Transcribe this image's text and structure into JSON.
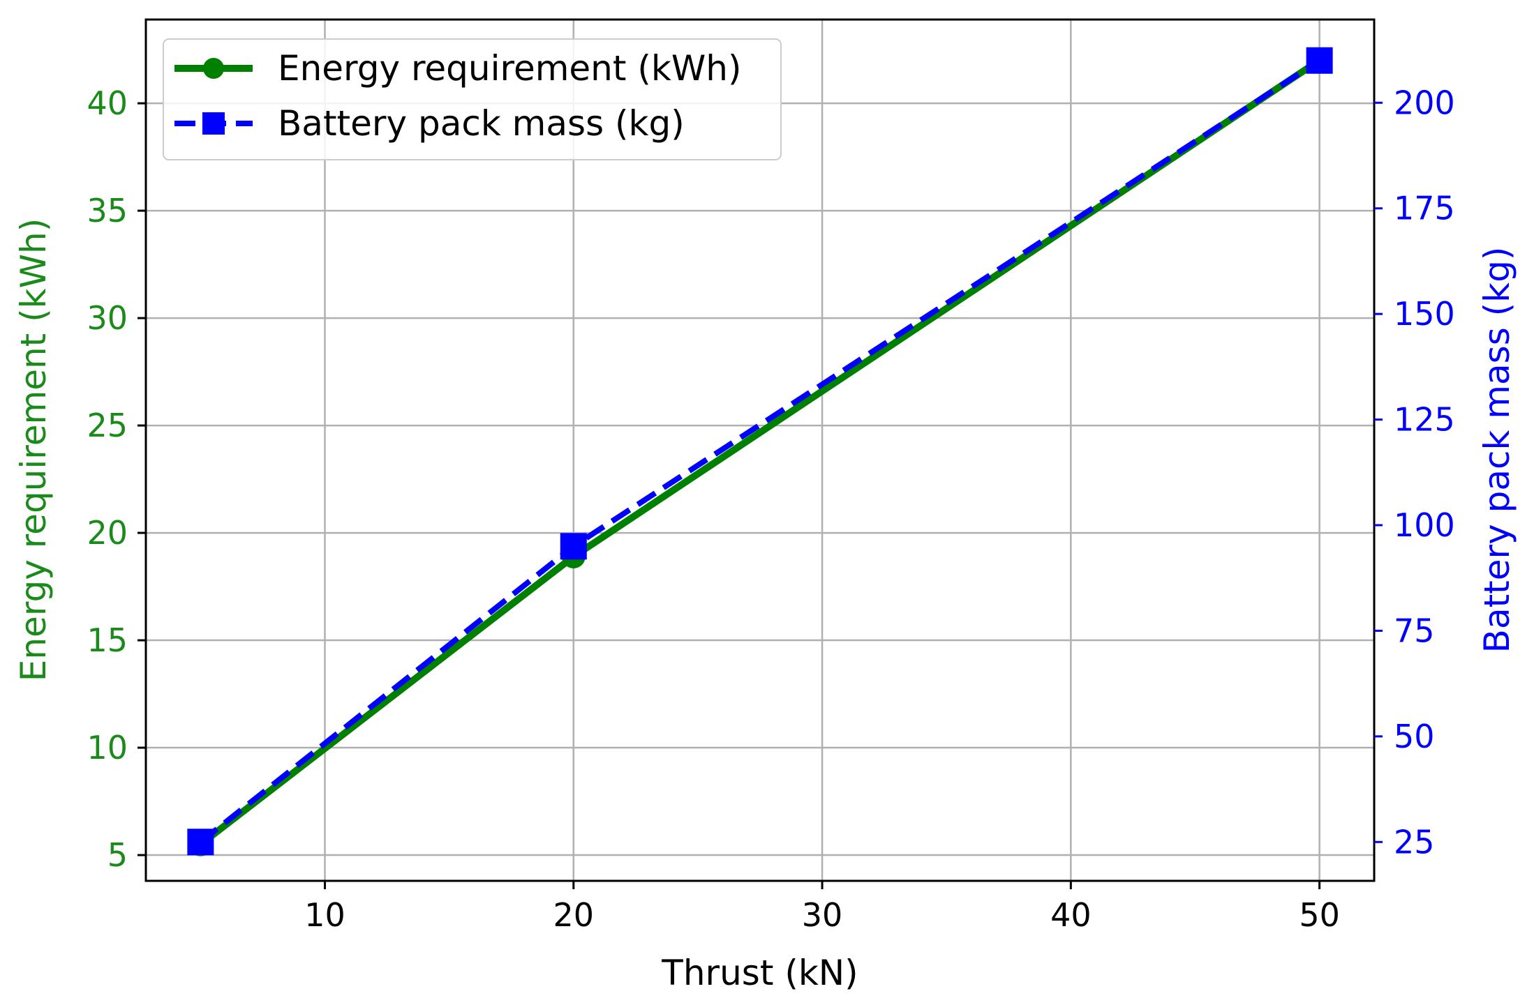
{
  "chart_data": {
    "type": "line",
    "xlabel": "Thrust (kN)",
    "ylabel_left": "Energy requirement (kWh)",
    "ylabel_right": "Battery pack mass (kg)",
    "x_ticks": [
      10,
      20,
      30,
      40,
      50
    ],
    "xlim": [
      2.8,
      52.2
    ],
    "y_left_ticks": [
      5,
      10,
      15,
      20,
      25,
      30,
      35,
      40
    ],
    "ylim_left": [
      3.8,
      43.9
    ],
    "y_right_ticks": [
      25,
      50,
      75,
      100,
      125,
      150,
      175,
      200
    ],
    "ylim_right": [
      15.8,
      219.7
    ],
    "grid": true,
    "legend_position": "top-left",
    "colors": {
      "left_axis": "#1a8a1a",
      "right_axis": "#0000ff",
      "series1": "#008000",
      "series2": "#0000ff"
    },
    "series": [
      {
        "name": "Energy requirement (kWh)",
        "axis": "left",
        "color": "#008000",
        "line_style": "solid",
        "marker": "circle",
        "x": [
          5,
          20,
          50
        ],
        "values": [
          5.5,
          18.9,
          42.0
        ]
      },
      {
        "name": "Battery pack mass (kg)",
        "axis": "right",
        "color": "#0000ff",
        "line_style": "dashed",
        "marker": "square",
        "x": [
          5,
          20,
          50
        ],
        "values": [
          25,
          95,
          210
        ]
      }
    ]
  }
}
